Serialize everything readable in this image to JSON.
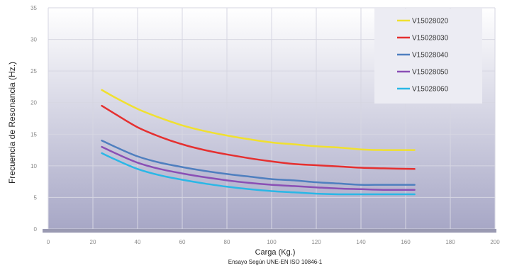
{
  "chart_data": {
    "type": "line",
    "title": "",
    "xlabel": "Carga (Kg.)",
    "xnote": "Ensayo Según UNE-EN ISO 10846-1",
    "ylabel": "Frecuencia de Resonancia (Hz.)",
    "xlim": [
      0,
      200
    ],
    "ylim": [
      0,
      35
    ],
    "xticks": [
      0,
      20,
      40,
      60,
      80,
      100,
      120,
      140,
      160,
      180,
      200
    ],
    "yticks": [
      0,
      5,
      10,
      15,
      20,
      25,
      30,
      35
    ],
    "grid": true,
    "legend_position": "top-right",
    "series": [
      {
        "name": "V15028020",
        "color": "#f0e030",
        "x": [
          24,
          30,
          40,
          50,
          60,
          70,
          80,
          90,
          100,
          110,
          120,
          130,
          140,
          150,
          164
        ],
        "y": [
          22,
          20.8,
          19,
          17.6,
          16.4,
          15.5,
          14.8,
          14.2,
          13.7,
          13.4,
          13.1,
          12.9,
          12.6,
          12.5,
          12.5
        ]
      },
      {
        "name": "V15028030",
        "color": "#e53030",
        "x": [
          24,
          30,
          40,
          50,
          60,
          70,
          80,
          90,
          100,
          110,
          120,
          130,
          140,
          150,
          164
        ],
        "y": [
          19.5,
          18.2,
          16.1,
          14.6,
          13.4,
          12.5,
          11.8,
          11.2,
          10.7,
          10.3,
          10.1,
          9.9,
          9.7,
          9.6,
          9.5
        ]
      },
      {
        "name": "V15028040",
        "color": "#4f7fbf",
        "x": [
          24,
          30,
          40,
          50,
          60,
          70,
          80,
          90,
          100,
          110,
          120,
          130,
          140,
          150,
          164
        ],
        "y": [
          14,
          13,
          11.5,
          10.5,
          9.8,
          9.2,
          8.7,
          8.3,
          7.9,
          7.7,
          7.4,
          7.2,
          7,
          7,
          7
        ]
      },
      {
        "name": "V15028050",
        "color": "#8a4fb5",
        "x": [
          24,
          30,
          40,
          50,
          60,
          70,
          80,
          90,
          100,
          110,
          120,
          130,
          140,
          150,
          164
        ],
        "y": [
          13,
          12,
          10.5,
          9.5,
          8.8,
          8.2,
          7.7,
          7.3,
          7,
          6.8,
          6.6,
          6.4,
          6.3,
          6.2,
          6.2
        ]
      },
      {
        "name": "V15028060",
        "color": "#2ab7e6",
        "x": [
          24,
          30,
          40,
          50,
          60,
          70,
          80,
          90,
          100,
          110,
          120,
          130,
          140,
          150,
          164
        ],
        "y": [
          12,
          11,
          9.5,
          8.5,
          7.8,
          7.2,
          6.7,
          6.3,
          6,
          5.8,
          5.6,
          5.5,
          5.5,
          5.5,
          5.5
        ]
      }
    ]
  }
}
